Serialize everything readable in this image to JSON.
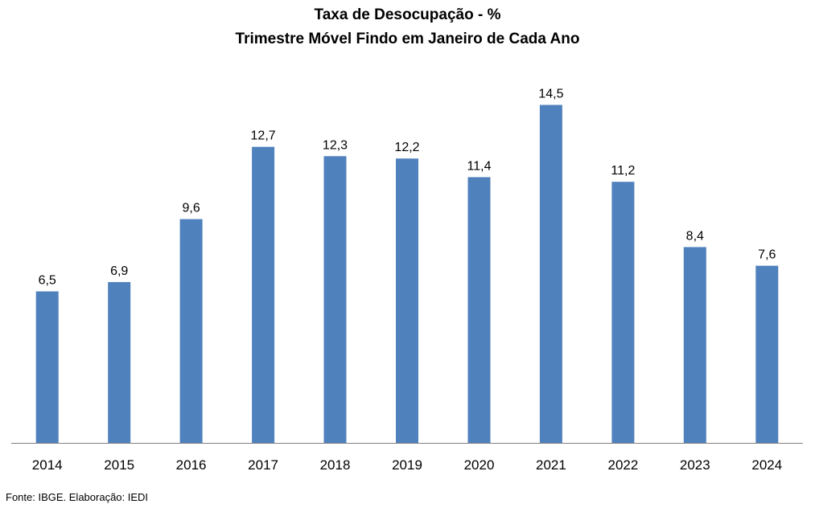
{
  "chart_data": {
    "type": "bar",
    "title": "Taxa de Desocupação - %",
    "subtitle": "Trimestre Móvel Findo em Janeiro de Cada Ano",
    "categories": [
      "2014",
      "2015",
      "2016",
      "2017",
      "2018",
      "2019",
      "2020",
      "2021",
      "2022",
      "2023",
      "2024"
    ],
    "values": [
      6.5,
      6.9,
      9.6,
      12.7,
      12.3,
      12.2,
      11.4,
      14.5,
      11.2,
      8.4,
      7.6
    ],
    "value_labels": [
      "6,5",
      "6,9",
      "9,6",
      "12,7",
      "12,3",
      "12,2",
      "11,4",
      "14,5",
      "11,2",
      "8,4",
      "7,6"
    ],
    "xlabel": "",
    "ylabel": "",
    "ylim": [
      0,
      15
    ],
    "grid": false,
    "bar_color": "#4f81bd",
    "axis_color": "#808080"
  },
  "footer": {
    "source": "Fonte: IBGE. Elaboração: IEDI"
  }
}
